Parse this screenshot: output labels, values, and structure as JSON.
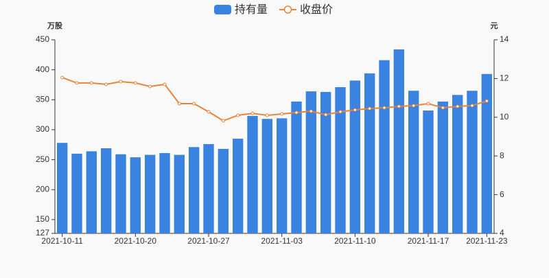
{
  "chart_data": {
    "type": "bar-line",
    "categories": [
      "2021-10-11",
      null,
      null,
      null,
      null,
      "2021-10-20",
      null,
      null,
      null,
      null,
      "2021-10-27",
      null,
      null,
      null,
      null,
      "2021-11-03",
      null,
      null,
      null,
      null,
      "2021-11-10",
      null,
      null,
      null,
      null,
      "2021-11-17",
      null,
      null,
      null,
      "2021-11-23"
    ],
    "series": [
      {
        "name": "持有量",
        "type": "bar",
        "axis": "y",
        "color": "#3a83e0",
        "values": [
          278,
          260,
          264,
          269,
          259,
          254,
          258,
          261,
          258,
          271,
          276,
          268,
          285,
          323,
          318,
          319,
          347,
          364,
          363,
          371,
          382,
          394,
          416,
          434,
          365,
          332,
          347,
          358,
          365,
          393
        ]
      },
      {
        "name": "收盘价",
        "type": "line",
        "axis": "y2",
        "color": "#e8833a",
        "values": [
          12.05,
          11.77,
          11.77,
          11.7,
          11.84,
          11.77,
          11.59,
          11.7,
          10.7,
          10.7,
          10.28,
          9.82,
          10.1,
          10.2,
          10.1,
          10.17,
          10.24,
          10.31,
          10.13,
          10.28,
          10.38,
          10.45,
          10.49,
          10.56,
          10.6,
          10.7,
          10.49,
          10.56,
          10.6,
          10.84
        ]
      }
    ],
    "ylabel": "万股",
    "y2label": "元",
    "ylim": [
      127,
      450
    ],
    "yticks": [
      127,
      150,
      200,
      250,
      300,
      350,
      400,
      450
    ],
    "y2lim": [
      4,
      14
    ],
    "y2ticks": [
      4,
      6,
      8,
      10,
      12,
      14
    ],
    "grid": false,
    "legend": "top"
  }
}
